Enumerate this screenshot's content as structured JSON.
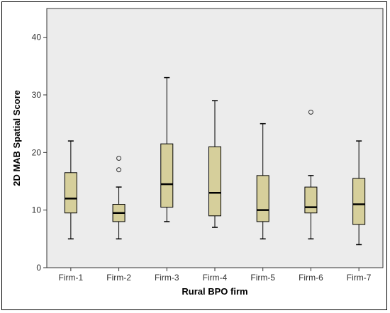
{
  "chart_data": {
    "type": "boxplot",
    "title": "",
    "xlabel": "Rural BPO firm",
    "ylabel": "2D MAB Spatial Score",
    "ylim": [
      0,
      45
    ],
    "yticks": [
      0,
      10,
      20,
      30,
      40
    ],
    "grid": false,
    "colors": {
      "box_fill": "#d6cf9b",
      "plot_bg": "#ececec",
      "outlier_stroke": "#333333"
    },
    "categories": [
      "Firm-1",
      "Firm-2",
      "Firm-3",
      "Firm-4",
      "Firm-5",
      "Firm-6",
      "Firm-7"
    ],
    "boxes": [
      {
        "category": "Firm-1",
        "min": 5,
        "q1": 9.5,
        "median": 12,
        "q3": 16.5,
        "max": 22,
        "outliers": []
      },
      {
        "category": "Firm-2",
        "min": 5,
        "q1": 8,
        "median": 9.5,
        "q3": 11,
        "max": 14,
        "outliers": [
          17,
          19
        ]
      },
      {
        "category": "Firm-3",
        "min": 8,
        "q1": 10.5,
        "median": 14.5,
        "q3": 21.5,
        "max": 33,
        "outliers": []
      },
      {
        "category": "Firm-4",
        "min": 7,
        "q1": 9,
        "median": 13,
        "q3": 21,
        "max": 29,
        "outliers": []
      },
      {
        "category": "Firm-5",
        "min": 5,
        "q1": 8,
        "median": 10,
        "q3": 16,
        "max": 25,
        "outliers": []
      },
      {
        "category": "Firm-6",
        "min": 5,
        "q1": 9.5,
        "median": 10.5,
        "q3": 14,
        "max": 16,
        "outliers": [
          27
        ]
      },
      {
        "category": "Firm-7",
        "min": 4,
        "q1": 7.5,
        "median": 11,
        "q3": 15.5,
        "max": 22,
        "outliers": []
      }
    ]
  }
}
